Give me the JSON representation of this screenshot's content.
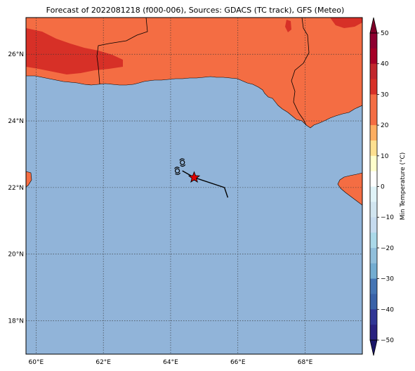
{
  "title": "Forecast of 2022081218 (f000-006), Sources: GDACS (TC track), GFS (Meteo)",
  "map": {
    "lon_range": [
      59.7,
      69.7
    ],
    "lat_range": [
      17.0,
      27.1
    ],
    "lon_ticks": [
      {
        "value": 60,
        "label": "60°E"
      },
      {
        "value": 62,
        "label": "62°E"
      },
      {
        "value": 64,
        "label": "64°E"
      },
      {
        "value": 66,
        "label": "66°E"
      },
      {
        "value": 68,
        "label": "68°E"
      }
    ],
    "lat_ticks": [
      {
        "value": 18,
        "label": "18°N"
      },
      {
        "value": 20,
        "label": "20°N"
      },
      {
        "value": 22,
        "label": "22°N"
      },
      {
        "value": 24,
        "label": "24°N"
      },
      {
        "value": 26,
        "label": "26°N"
      }
    ],
    "grid": "dotted",
    "colors": {
      "sea": "#91b4d9",
      "land_warm": "#f46d43",
      "land_hot": "#d73027",
      "borders": "#000000"
    },
    "storm": {
      "current_position": {
        "lon": 64.7,
        "lat": 22.3,
        "marker": "red-star"
      },
      "track": [
        {
          "lon": 65.7,
          "lat": 21.7
        },
        {
          "lon": 65.6,
          "lat": 22.0
        },
        {
          "lon": 64.7,
          "lat": 22.3
        },
        {
          "lon": 64.35,
          "lat": 22.5
        }
      ],
      "cyclone_symbols": [
        {
          "lon": 64.35,
          "lat": 22.75
        },
        {
          "lon": 64.2,
          "lat": 22.5
        }
      ]
    }
  },
  "colorbar": {
    "label": "Min Temperature (°C)",
    "ticks": [
      50,
      40,
      30,
      20,
      10,
      0,
      -10,
      -20,
      -30,
      -40,
      -50
    ],
    "tick_labels": [
      "50",
      "40",
      "30",
      "20",
      "10",
      "0",
      "−10",
      "−20",
      "−30",
      "−40",
      "−50"
    ],
    "levels": [
      {
        "from": 45,
        "to": 50,
        "color": "#8e0030"
      },
      {
        "from": 40,
        "to": 45,
        "color": "#a50026"
      },
      {
        "from": 35,
        "to": 40,
        "color": "#c1272d"
      },
      {
        "from": 30,
        "to": 35,
        "color": "#d73027"
      },
      {
        "from": 25,
        "to": 30,
        "color": "#f46d43"
      },
      {
        "from": 20,
        "to": 25,
        "color": "#f46d43"
      },
      {
        "from": 15,
        "to": 20,
        "color": "#fdae61"
      },
      {
        "from": 10,
        "to": 15,
        "color": "#fee090"
      },
      {
        "from": 5,
        "to": 10,
        "color": "#ffffcc"
      },
      {
        "from": 0,
        "to": 5,
        "color": "#ffffff"
      },
      {
        "from": -5,
        "to": 0,
        "color": "#e0f3f8"
      },
      {
        "from": -10,
        "to": -5,
        "color": "#d1e5f0"
      },
      {
        "from": -15,
        "to": -10,
        "color": "#c6dbef"
      },
      {
        "from": -20,
        "to": -15,
        "color": "#abd9e9"
      },
      {
        "from": -25,
        "to": -20,
        "color": "#91bfdb"
      },
      {
        "from": -30,
        "to": -25,
        "color": "#74add1"
      },
      {
        "from": -35,
        "to": -30,
        "color": "#4575b4"
      },
      {
        "from": -40,
        "to": -35,
        "color": "#3a62a8"
      },
      {
        "from": -45,
        "to": -40,
        "color": "#313695"
      },
      {
        "from": -50,
        "to": -45,
        "color": "#2a2280"
      }
    ]
  }
}
